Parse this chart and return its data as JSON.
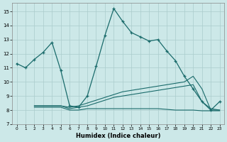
{
  "xlabel": "Humidex (Indice chaleur)",
  "bg_color": "#cce8e8",
  "grid_color": "#aacccc",
  "line_color": "#1a6b6b",
  "xlim": [
    -0.5,
    23.5
  ],
  "ylim": [
    7.0,
    15.6
  ],
  "yticks": [
    7,
    8,
    9,
    10,
    11,
    12,
    13,
    14,
    15
  ],
  "xticks": [
    0,
    1,
    2,
    3,
    4,
    5,
    6,
    7,
    8,
    9,
    10,
    11,
    12,
    13,
    14,
    15,
    16,
    17,
    18,
    19,
    20,
    21,
    22,
    23
  ],
  "line1_x": [
    0,
    1,
    2,
    3,
    4,
    5,
    6,
    7,
    8,
    9,
    10,
    11,
    12,
    13,
    14,
    15,
    16,
    17,
    18,
    19,
    20,
    21,
    22,
    23
  ],
  "line1_y": [
    11.3,
    11.0,
    11.6,
    12.1,
    12.8,
    10.8,
    8.3,
    8.2,
    9.0,
    11.1,
    13.3,
    15.2,
    14.3,
    13.5,
    13.2,
    12.9,
    13.0,
    12.2,
    11.5,
    10.4,
    9.5,
    8.6,
    8.0,
    8.6
  ],
  "line2_x": [
    2,
    3,
    4,
    5,
    6,
    7,
    8,
    9,
    10,
    11,
    12,
    13,
    14,
    15,
    16,
    17,
    18,
    19,
    20,
    21,
    22,
    23
  ],
  "line2_y": [
    8.3,
    8.3,
    8.3,
    8.3,
    8.2,
    8.3,
    8.5,
    8.7,
    8.9,
    9.1,
    9.3,
    9.4,
    9.5,
    9.6,
    9.7,
    9.8,
    9.9,
    10.0,
    10.4,
    9.5,
    8.0,
    8.0
  ],
  "line3_x": [
    2,
    3,
    4,
    5,
    6,
    7,
    8,
    9,
    10,
    11,
    12,
    13,
    14,
    15,
    16,
    17,
    18,
    19,
    20,
    21,
    22,
    23
  ],
  "line3_y": [
    8.3,
    8.3,
    8.3,
    8.3,
    8.1,
    8.2,
    8.3,
    8.5,
    8.7,
    8.9,
    9.0,
    9.1,
    9.2,
    9.3,
    9.4,
    9.5,
    9.6,
    9.7,
    9.8,
    8.6,
    8.1,
    8.0
  ],
  "line4_x": [
    2,
    3,
    4,
    5,
    6,
    7,
    8,
    9,
    10,
    11,
    12,
    13,
    14,
    15,
    16,
    17,
    18,
    19,
    20,
    21,
    22,
    23
  ],
  "line4_y": [
    8.2,
    8.2,
    8.2,
    8.2,
    8.0,
    8.0,
    8.1,
    8.1,
    8.1,
    8.1,
    8.1,
    8.1,
    8.1,
    8.1,
    8.1,
    8.05,
    8.0,
    8.0,
    8.0,
    7.95,
    7.95,
    7.95
  ]
}
